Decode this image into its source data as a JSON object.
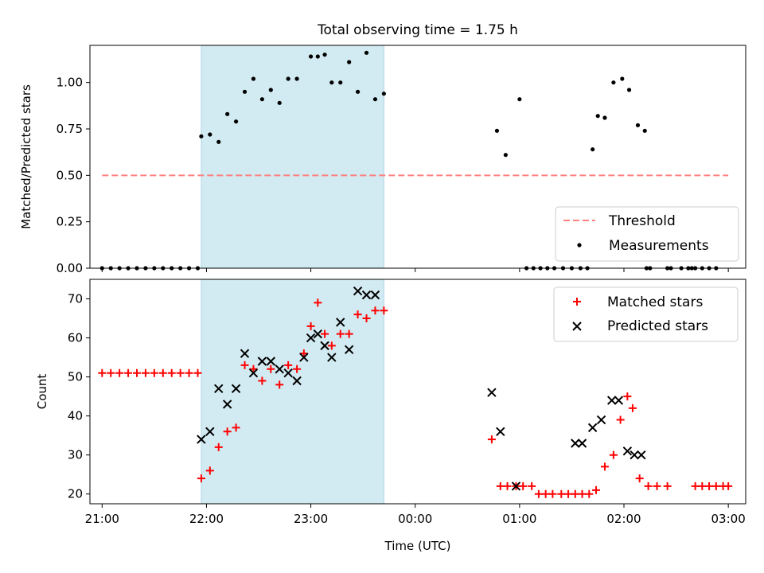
{
  "title": "Total observing time = 1.75 h",
  "colors": {
    "threshold": "#ff7f7f",
    "measurements": "#000000",
    "matched": "#ff0000",
    "predicted": "#000000",
    "shade": "#add8e6"
  },
  "chart_data": [
    {
      "type": "scatter",
      "ylabel": "Matched/Predicted stars",
      "ylim": [
        0,
        1.2
      ],
      "xlim": [
        "20:53",
        "03:10"
      ],
      "yticks": [
        "0.00",
        "0.25",
        "0.50",
        "0.75",
        "1.00"
      ],
      "yticks_values": [
        0,
        0.25,
        0.5,
        0.75,
        1.0
      ],
      "xticks_values": [
        "21:00",
        "22:00",
        "23:00",
        "00:00",
        "01:00",
        "02:00",
        "03:00"
      ],
      "shaded_span": [
        "21:57",
        "23:42"
      ],
      "legend_position": "lower right",
      "threshold": {
        "name": "Threshold",
        "value": 0.5,
        "x_range": [
          "21:00",
          "03:00"
        ]
      },
      "series": [
        {
          "name": "Measurements",
          "x": [
            "21:00",
            "21:05",
            "21:10",
            "21:15",
            "21:20",
            "21:25",
            "21:30",
            "21:35",
            "21:40",
            "21:45",
            "21:50",
            "21:55",
            "21:57",
            "22:02",
            "22:07",
            "22:12",
            "22:17",
            "22:22",
            "22:27",
            "22:32",
            "22:37",
            "22:42",
            "22:47",
            "22:52",
            "23:00",
            "23:04",
            "23:08",
            "23:12",
            "23:17",
            "23:22",
            "23:27",
            "23:32",
            "23:37",
            "23:42",
            "00:47",
            "00:52",
            "01:00",
            "01:04",
            "01:08",
            "01:12",
            "01:16",
            "01:20",
            "01:25",
            "01:30",
            "01:35",
            "01:39",
            "01:42",
            "01:45",
            "01:49",
            "01:54",
            "01:59",
            "02:03",
            "02:08",
            "02:12",
            "02:13",
            "02:15",
            "02:25",
            "02:27",
            "02:33",
            "02:37",
            "02:39",
            "02:41",
            "02:45",
            "02:49",
            "02:53"
          ],
          "y": [
            0,
            0,
            0,
            0,
            0,
            0,
            0,
            0,
            0,
            0,
            0,
            0,
            0.71,
            0.72,
            0.68,
            0.83,
            0.79,
            0.95,
            1.02,
            0.91,
            0.96,
            0.89,
            1.02,
            1.02,
            1.14,
            1.14,
            1.15,
            1.0,
            1.0,
            1.11,
            0.95,
            1.16,
            0.91,
            0.94,
            0.74,
            0.61,
            0.91,
            0.0,
            0.0,
            0.0,
            0.0,
            0.0,
            0.0,
            0.0,
            0.0,
            0.0,
            0.64,
            0.82,
            0.81,
            1.0,
            1.02,
            0.96,
            0.77,
            0.74,
            0.0,
            0.0,
            0.0,
            0.0,
            0.0,
            0.0,
            0.0,
            0.0,
            0.0,
            0.0,
            0.0
          ]
        }
      ]
    },
    {
      "type": "scatter",
      "ylabel": "Count",
      "xlabel": "Time (UTC)",
      "ylim": [
        17.5,
        75
      ],
      "xlim": [
        "20:53",
        "03:10"
      ],
      "yticks": [
        "20",
        "30",
        "40",
        "50",
        "60",
        "70"
      ],
      "yticks_values": [
        20,
        30,
        40,
        50,
        60,
        70
      ],
      "xticks": [
        "21:00",
        "22:00",
        "23:00",
        "00:00",
        "01:00",
        "02:00",
        "03:00"
      ],
      "xticks_values": [
        "21:00",
        "22:00",
        "23:00",
        "00:00",
        "01:00",
        "02:00",
        "03:00"
      ],
      "shaded_span": [
        "21:57",
        "23:42"
      ],
      "legend_position": "upper right",
      "series": [
        {
          "name": "Matched stars",
          "marker": "plus",
          "x": [
            "21:00",
            "21:05",
            "21:10",
            "21:15",
            "21:20",
            "21:25",
            "21:30",
            "21:35",
            "21:40",
            "21:45",
            "21:50",
            "21:55",
            "21:57",
            "22:02",
            "22:07",
            "22:12",
            "22:17",
            "22:22",
            "22:27",
            "22:32",
            "22:37",
            "22:42",
            "22:47",
            "22:52",
            "22:56",
            "23:00",
            "23:04",
            "23:08",
            "23:12",
            "23:17",
            "23:22",
            "23:27",
            "23:32",
            "23:37",
            "23:42",
            "00:44",
            "00:49",
            "00:53",
            "00:58",
            "01:02",
            "01:07",
            "01:11",
            "01:15",
            "01:19",
            "01:24",
            "01:28",
            "01:32",
            "01:36",
            "01:40",
            "01:44",
            "01:49",
            "01:54",
            "01:58",
            "02:02",
            "02:05",
            "02:09",
            "02:14",
            "02:19",
            "02:25",
            "02:41",
            "02:45",
            "02:49",
            "02:53",
            "02:57",
            "03:00"
          ],
          "y": [
            51,
            51,
            51,
            51,
            51,
            51,
            51,
            51,
            51,
            51,
            51,
            51,
            24,
            26,
            32,
            36,
            37,
            53,
            52,
            49,
            52,
            48,
            53,
            52,
            56,
            63,
            69,
            61,
            58,
            61,
            61,
            66,
            65,
            67,
            67,
            34,
            22,
            22,
            22,
            22,
            22,
            20,
            20,
            20,
            20,
            20,
            20,
            20,
            20,
            21,
            27,
            30,
            39,
            45,
            42,
            24,
            22,
            22,
            22,
            22,
            22,
            22,
            22,
            22,
            22
          ]
        },
        {
          "name": "Predicted stars",
          "marker": "x",
          "x": [
            "21:57",
            "22:02",
            "22:07",
            "22:12",
            "22:17",
            "22:22",
            "22:27",
            "22:32",
            "22:37",
            "22:42",
            "22:47",
            "22:52",
            "22:56",
            "23:00",
            "23:04",
            "23:08",
            "23:12",
            "23:17",
            "23:22",
            "23:27",
            "23:32",
            "23:37",
            "00:44",
            "00:49",
            "00:58",
            "01:32",
            "01:36",
            "01:42",
            "01:47",
            "01:53",
            "01:57",
            "02:02",
            "02:06",
            "02:10"
          ],
          "y": [
            34,
            36,
            47,
            43,
            47,
            56,
            51,
            54,
            54,
            52,
            51,
            49,
            55,
            60,
            61,
            58,
            55,
            64,
            57,
            72,
            71,
            71,
            46,
            36,
            22,
            33,
            33,
            37,
            39,
            44,
            44,
            31,
            30,
            30
          ]
        }
      ]
    }
  ]
}
